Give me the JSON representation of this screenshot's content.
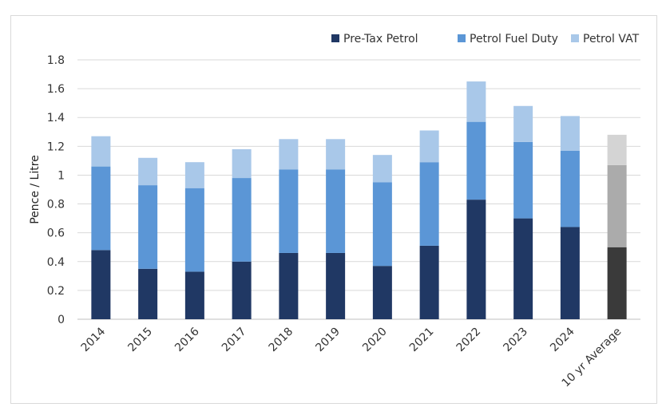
{
  "chart_data": {
    "type": "bar",
    "stacked": true,
    "title": "",
    "xlabel": "",
    "ylabel": "Pence / Litre",
    "ylim": [
      0,
      1.8
    ],
    "yticks": [
      "0",
      "0.2",
      "0.4",
      "0.6",
      "0.8",
      "1",
      "1.2",
      "1.4",
      "1.6",
      "1.8"
    ],
    "grid": "horizontal",
    "legend_position": "top-right",
    "categories": [
      "2014",
      "2015",
      "2016",
      "2017",
      "2018",
      "2019",
      "2020",
      "2021",
      "2022",
      "2023",
      "2024",
      "10 yr Average"
    ],
    "series": [
      {
        "name": "Pre-Tax Petrol",
        "color": "#203864",
        "values": [
          0.48,
          0.35,
          0.33,
          0.4,
          0.46,
          0.46,
          0.37,
          0.51,
          0.83,
          0.7,
          0.64,
          0.5
        ]
      },
      {
        "name": "Petrol Fuel Duty",
        "color": "#5b96d6",
        "values": [
          0.58,
          0.58,
          0.58,
          0.58,
          0.58,
          0.58,
          0.58,
          0.58,
          0.54,
          0.53,
          0.53,
          0.57
        ]
      },
      {
        "name": "Petrol VAT",
        "color": "#a9c8e9",
        "values": [
          0.21,
          0.19,
          0.18,
          0.2,
          0.21,
          0.21,
          0.19,
          0.22,
          0.28,
          0.25,
          0.24,
          0.21
        ]
      }
    ],
    "highlight_category_colors": {
      "category": "10 yr Average",
      "colors": [
        "#3a3a3a",
        "#ababab",
        "#d4d4d4"
      ]
    }
  }
}
